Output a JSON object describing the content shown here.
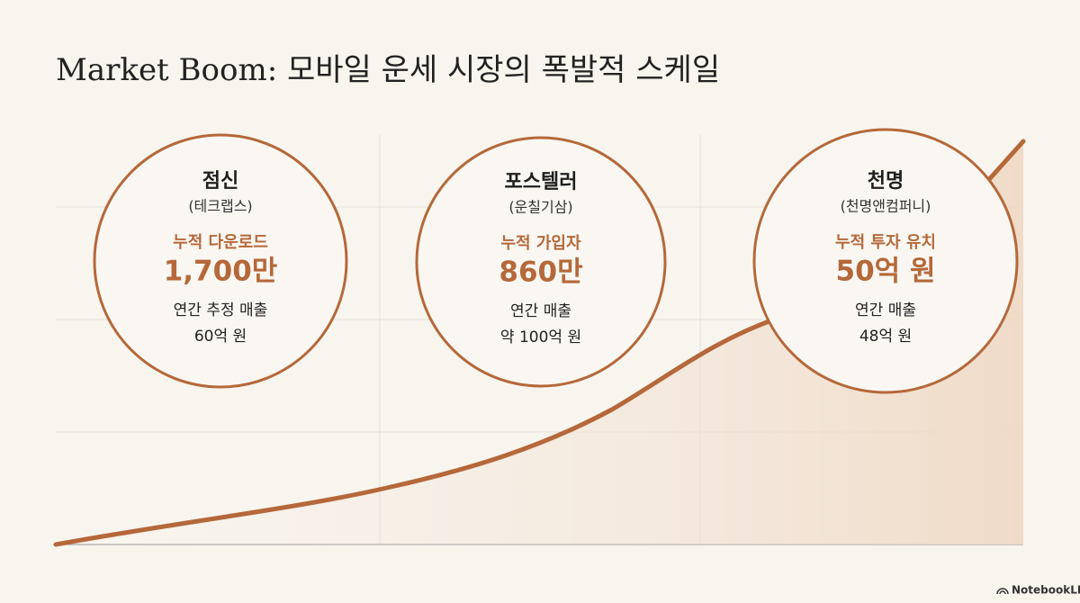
{
  "title": "Market Boom: 모바일 운세 시장의 폭발적 스케일",
  "cards": [
    {
      "name": "점신",
      "company": "(테크랩스)",
      "metric_label": "누적 다운로드",
      "metric_value": "1,700만",
      "sub_label": "연간 추정 매출",
      "sub_value": "60억 원"
    },
    {
      "name": "포스텔러",
      "company": "(운칠기삼)",
      "metric_label": "누적 가입자",
      "metric_value": "860만",
      "sub_label": "연간 매출",
      "sub_value": "약 100억 원"
    },
    {
      "name": "천명",
      "company": "(천명앤컴퍼니)",
      "metric_label": "누적 투자 유치",
      "metric_value": "50억 원",
      "sub_label": "연간 매출",
      "sub_value": "48억 원"
    }
  ],
  "footer": {
    "brand": "NotebookLM"
  }
}
